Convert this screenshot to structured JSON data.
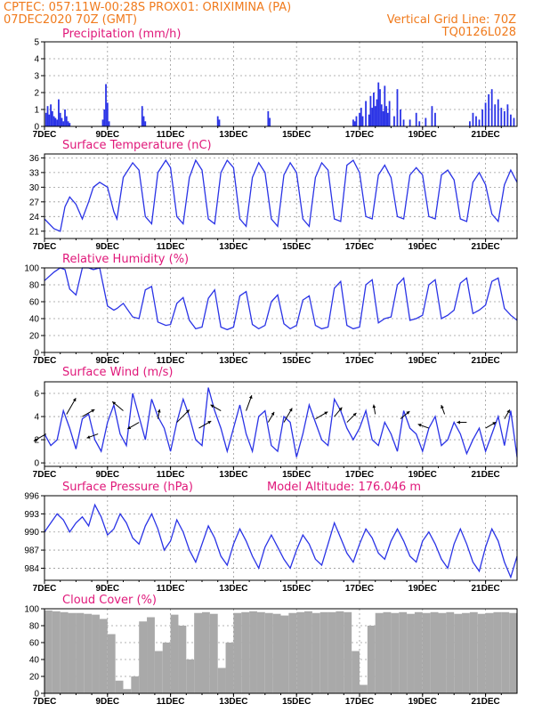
{
  "header": {
    "line1": "CPTEC:   057:11W-00:28S   PROX01: ORIXIMINA (PA)",
    "line2": "07DEC2020 70Z (GMT)",
    "grid_note": "Vertical Grid Line: 70Z",
    "code": "TQ0126L028"
  },
  "colors": {
    "series": "#2a33e6",
    "header": "#f07a1c",
    "title": "#e0187a",
    "cloud": "#a9a9a9",
    "arrow": "#000000"
  },
  "chart_data": [
    {
      "id": "precip",
      "type": "bar",
      "title": "Precipitation (mm/h)",
      "xlim": [
        7,
        22
      ],
      "ylim": [
        0,
        5
      ],
      "yticks": [
        "0",
        "1",
        "2",
        "3",
        "4",
        "5"
      ],
      "ytick_values": [
        0,
        1,
        2,
        3,
        4,
        5
      ],
      "x_tick_labels": [
        "7DEC",
        "9DEC",
        "11DEC",
        "13DEC",
        "15DEC",
        "17DEC",
        "19DEC",
        "21DEC"
      ],
      "x_tick_values": [
        7,
        9,
        11,
        13,
        15,
        17,
        19,
        21
      ],
      "x": [
        7.05,
        7.1,
        7.15,
        7.2,
        7.25,
        7.3,
        7.35,
        7.4,
        7.45,
        7.5,
        7.55,
        7.6,
        7.65,
        7.7,
        7.75,
        7.8,
        8.85,
        8.9,
        8.95,
        9.0,
        9.05,
        10.1,
        10.15,
        10.2,
        12.5,
        12.55,
        14.1,
        14.15,
        16.8,
        16.85,
        16.9,
        17.0,
        17.05,
        17.1,
        17.2,
        17.3,
        17.35,
        17.4,
        17.45,
        17.5,
        17.55,
        17.6,
        17.65,
        17.7,
        17.75,
        17.8,
        17.85,
        17.9,
        17.95,
        18.1,
        18.2,
        18.3,
        18.4,
        18.6,
        18.8,
        18.9,
        19.1,
        19.3,
        19.4,
        20.5,
        20.6,
        20.7,
        20.8,
        20.9,
        21.0,
        21.1,
        21.2,
        21.3,
        21.4,
        21.5,
        21.6,
        21.7,
        21.8,
        21.9
      ],
      "values": [
        0.8,
        1.2,
        0.7,
        1.3,
        0.9,
        0.6,
        0.5,
        0.4,
        1.6,
        0.8,
        0.5,
        0.3,
        1.0,
        0.6,
        0.3,
        0.2,
        0.4,
        1.0,
        2.5,
        1.4,
        0.3,
        1.2,
        0.6,
        0.3,
        0.6,
        0.4,
        0.9,
        0.5,
        0.4,
        0.3,
        0.6,
        0.8,
        1.1,
        0.6,
        1.5,
        0.7,
        1.8,
        1.1,
        2.0,
        1.2,
        1.6,
        2.6,
        2.2,
        1.3,
        0.9,
        2.4,
        1.2,
        0.8,
        1.5,
        0.6,
        2.2,
        1.0,
        0.4,
        0.4,
        0.8,
        0.3,
        0.5,
        1.2,
        0.8,
        0.3,
        0.8,
        0.6,
        0.4,
        1.0,
        1.4,
        1.9,
        2.2,
        1.3,
        1.6,
        1.1,
        0.9,
        1.3,
        0.7,
        0.5
      ]
    },
    {
      "id": "temp",
      "type": "line",
      "title": "Surface Temperature (nC)",
      "xlim": [
        7,
        22
      ],
      "ylim": [
        19.5,
        36.8
      ],
      "yticks": [
        "21",
        "24",
        "27",
        "30",
        "33",
        "36"
      ],
      "ytick_values": [
        21,
        24,
        27,
        30,
        33,
        36
      ],
      "x_tick_labels": [
        "7DEC",
        "9DEC",
        "11DEC",
        "13DEC",
        "15DEC",
        "17DEC",
        "19DEC",
        "21DEC"
      ],
      "x_tick_values": [
        7,
        9,
        11,
        13,
        15,
        17,
        19,
        21
      ],
      "x": [
        7.0,
        7.3,
        7.5,
        7.65,
        7.8,
        8.0,
        8.2,
        8.4,
        8.55,
        8.75,
        9.0,
        9.2,
        9.3,
        9.5,
        9.8,
        10.0,
        10.2,
        10.4,
        10.6,
        10.85,
        11.0,
        11.2,
        11.4,
        11.6,
        11.8,
        12.0,
        12.2,
        12.4,
        12.6,
        12.8,
        13.0,
        13.2,
        13.4,
        13.6,
        13.8,
        14.0,
        14.2,
        14.4,
        14.6,
        14.8,
        15.0,
        15.2,
        15.4,
        15.6,
        15.8,
        16.0,
        16.2,
        16.4,
        16.6,
        16.8,
        17.0,
        17.2,
        17.4,
        17.6,
        17.8,
        18.0,
        18.2,
        18.4,
        18.6,
        18.8,
        19.0,
        19.2,
        19.4,
        19.6,
        19.8,
        20.0,
        20.2,
        20.4,
        20.6,
        20.8,
        21.0,
        21.2,
        21.4,
        21.6,
        21.8,
        22.0
      ],
      "values": [
        23.5,
        21.5,
        21.0,
        26.0,
        28.0,
        26.5,
        23.5,
        27.0,
        30.0,
        31.0,
        30.0,
        25.0,
        23.5,
        32.0,
        35.0,
        33.5,
        24.0,
        22.5,
        33.0,
        35.5,
        34.0,
        24.0,
        22.5,
        32.0,
        35.5,
        33.5,
        23.5,
        22.5,
        33.0,
        35.5,
        34.0,
        23.5,
        22.0,
        32.0,
        35.0,
        33.0,
        23.5,
        22.0,
        32.5,
        35.0,
        33.0,
        23.5,
        22.0,
        32.0,
        35.0,
        33.5,
        23.5,
        23.0,
        34.5,
        35.5,
        33.0,
        24.0,
        23.5,
        32.5,
        34.5,
        32.0,
        24.0,
        23.5,
        32.5,
        34.0,
        32.5,
        24.0,
        23.5,
        32.5,
        33.5,
        31.5,
        23.5,
        23.0,
        31.0,
        33.0,
        30.5,
        24.5,
        23.0,
        30.5,
        33.5,
        31.0
      ]
    },
    {
      "id": "rh",
      "type": "line",
      "title": "Relative Humidity (%)",
      "xlim": [
        7,
        22
      ],
      "ylim": [
        0,
        100
      ],
      "yticks": [
        "0",
        "20",
        "40",
        "60",
        "80",
        "100"
      ],
      "ytick_values": [
        0,
        20,
        40,
        60,
        80,
        100
      ],
      "x_tick_labels": [
        "7DEC",
        "9DEC",
        "11DEC",
        "13DEC",
        "15DEC",
        "17DEC",
        "19DEC",
        "21DEC"
      ],
      "x_tick_values": [
        7,
        9,
        11,
        13,
        15,
        17,
        19,
        21
      ],
      "x": [
        7.0,
        7.3,
        7.5,
        7.65,
        7.8,
        8.0,
        8.2,
        8.4,
        8.55,
        8.75,
        9.0,
        9.2,
        9.3,
        9.5,
        9.8,
        10.0,
        10.2,
        10.4,
        10.6,
        10.85,
        11.0,
        11.2,
        11.4,
        11.6,
        11.8,
        12.0,
        12.2,
        12.4,
        12.6,
        12.8,
        13.0,
        13.2,
        13.4,
        13.6,
        13.8,
        14.0,
        14.2,
        14.4,
        14.6,
        14.8,
        15.0,
        15.2,
        15.4,
        15.6,
        15.8,
        16.0,
        16.2,
        16.4,
        16.6,
        16.8,
        17.0,
        17.2,
        17.4,
        17.6,
        17.8,
        18.0,
        18.2,
        18.4,
        18.6,
        18.8,
        19.0,
        19.2,
        19.4,
        19.6,
        19.8,
        20.0,
        20.2,
        20.4,
        20.6,
        20.8,
        21.0,
        21.2,
        21.4,
        21.6,
        21.8,
        22.0
      ],
      "values": [
        85,
        95,
        100,
        98,
        75,
        68,
        100,
        100,
        98,
        100,
        55,
        50,
        52,
        58,
        42,
        40,
        74,
        78,
        36,
        32,
        33,
        58,
        65,
        38,
        28,
        30,
        64,
        74,
        30,
        27,
        30,
        67,
        72,
        33,
        28,
        32,
        60,
        68,
        34,
        28,
        32,
        62,
        67,
        32,
        28,
        30,
        76,
        84,
        32,
        28,
        30,
        80,
        86,
        35,
        40,
        42,
        80,
        88,
        38,
        40,
        44,
        80,
        86,
        40,
        44,
        50,
        82,
        88,
        46,
        50,
        56,
        84,
        88,
        52,
        44,
        38
      ]
    },
    {
      "id": "wind",
      "type": "line",
      "title": "Surface Wind (m/s)",
      "xlim": [
        7,
        22
      ],
      "ylim": [
        -0.3,
        7
      ],
      "yticks": [
        "0",
        "2",
        "4",
        "6"
      ],
      "ytick_values": [
        0,
        2,
        4,
        6
      ],
      "x_tick_labels": [
        "7DEC",
        "9DEC",
        "11DEC",
        "13DEC",
        "15DEC",
        "17DEC",
        "19DEC",
        "21DEC"
      ],
      "x_tick_values": [
        7,
        9,
        11,
        13,
        15,
        17,
        19,
        21
      ],
      "x": [
        7.0,
        7.2,
        7.4,
        7.6,
        7.8,
        8.0,
        8.2,
        8.4,
        8.6,
        8.8,
        9.0,
        9.2,
        9.4,
        9.6,
        9.8,
        10.0,
        10.2,
        10.4,
        10.6,
        10.8,
        11.0,
        11.2,
        11.4,
        11.6,
        11.8,
        12.0,
        12.2,
        12.4,
        12.6,
        12.8,
        13.0,
        13.2,
        13.4,
        13.6,
        13.8,
        14.0,
        14.2,
        14.4,
        14.6,
        14.8,
        15.0,
        15.2,
        15.4,
        15.6,
        15.8,
        16.0,
        16.2,
        16.4,
        16.6,
        16.8,
        17.0,
        17.2,
        17.4,
        17.6,
        17.8,
        18.0,
        18.2,
        18.4,
        18.6,
        18.8,
        19.0,
        19.2,
        19.4,
        19.6,
        19.8,
        20.0,
        20.2,
        20.4,
        20.6,
        20.8,
        21.0,
        21.2,
        21.4,
        21.6,
        21.8,
        22.0
      ],
      "values": [
        2.5,
        1.5,
        2.0,
        4.5,
        3.0,
        1.2,
        3.8,
        4.2,
        2.0,
        1.0,
        3.5,
        5.0,
        2.5,
        1.5,
        6.0,
        4.0,
        2.0,
        5.5,
        4.0,
        3.0,
        1.0,
        3.5,
        5.5,
        4.0,
        2.0,
        1.5,
        6.5,
        4.5,
        3.0,
        1.0,
        3.0,
        5.0,
        2.5,
        1.0,
        4.0,
        4.5,
        1.5,
        1.0,
        4.0,
        3.5,
        0.5,
        2.5,
        5.0,
        3.5,
        2.0,
        1.5,
        5.5,
        4.5,
        3.0,
        2.0,
        3.0,
        4.5,
        2.0,
        1.5,
        3.5,
        2.5,
        1.0,
        4.5,
        3.0,
        2.5,
        1.0,
        3.0,
        4.0,
        1.5,
        2.0,
        3.5,
        2.5,
        0.8,
        2.0,
        3.0,
        1.0,
        2.5,
        4.0,
        1.5,
        4.5,
        0.5
      ],
      "vectors": [
        {
          "x": 7.05,
          "y": 2.5,
          "angle": 210,
          "speed": 2.0
        },
        {
          "x": 7.7,
          "y": 4.2,
          "angle": 60,
          "speed": 3.0
        },
        {
          "x": 8.2,
          "y": 4.0,
          "angle": 30,
          "speed": 2.0
        },
        {
          "x": 8.7,
          "y": 2.5,
          "angle": 200,
          "speed": 1.5
        },
        {
          "x": 9.5,
          "y": 4.5,
          "angle": 140,
          "speed": 2.0
        },
        {
          "x": 10.0,
          "y": 3.5,
          "angle": 210,
          "speed": 1.8
        },
        {
          "x": 10.6,
          "y": 3.8,
          "angle": 80,
          "speed": 1.0
        },
        {
          "x": 11.2,
          "y": 3.5,
          "angle": 45,
          "speed": 2.8
        },
        {
          "x": 11.9,
          "y": 3.0,
          "angle": 30,
          "speed": 2.0
        },
        {
          "x": 12.6,
          "y": 4.5,
          "angle": 150,
          "speed": 1.5
        },
        {
          "x": 13.4,
          "y": 4.5,
          "angle": 70,
          "speed": 2.5
        },
        {
          "x": 14.1,
          "y": 3.5,
          "angle": 60,
          "speed": 1.5
        },
        {
          "x": 14.6,
          "y": 3.5,
          "angle": 60,
          "speed": 2.5
        },
        {
          "x": 15.6,
          "y": 3.8,
          "angle": 30,
          "speed": 2.0
        },
        {
          "x": 16.2,
          "y": 4.0,
          "angle": 50,
          "speed": 1.5
        },
        {
          "x": 16.6,
          "y": 3.5,
          "angle": 45,
          "speed": 1.8
        },
        {
          "x": 17.5,
          "y": 4.2,
          "angle": 100,
          "speed": 1.0
        },
        {
          "x": 18.3,
          "y": 3.8,
          "angle": 40,
          "speed": 1.5
        },
        {
          "x": 19.2,
          "y": 3.0,
          "angle": 160,
          "speed": 1.4
        },
        {
          "x": 19.7,
          "y": 4.2,
          "angle": 110,
          "speed": 1.0
        },
        {
          "x": 20.4,
          "y": 3.5,
          "angle": 180,
          "speed": 1.0
        },
        {
          "x": 21.0,
          "y": 3.0,
          "angle": 30,
          "speed": 1.5
        },
        {
          "x": 21.6,
          "y": 3.8,
          "angle": 60,
          "speed": 1.2
        }
      ]
    },
    {
      "id": "press",
      "type": "line",
      "title": "Surface Pressure (hPa)",
      "annotation": "Model Altitude: 176.046 m",
      "xlim": [
        7,
        22
      ],
      "ylim": [
        982,
        996
      ],
      "yticks": [
        "984",
        "987",
        "990",
        "993",
        "996"
      ],
      "ytick_values": [
        984,
        987,
        990,
        993,
        996
      ],
      "x_tick_labels": [
        "7DEC",
        "9DEC",
        "11DEC",
        "13DEC",
        "15DEC",
        "17DEC",
        "19DEC",
        "21DEC"
      ],
      "x_tick_values": [
        7,
        9,
        11,
        13,
        15,
        17,
        19,
        21
      ],
      "x": [
        7.0,
        7.2,
        7.4,
        7.6,
        7.8,
        8.0,
        8.2,
        8.4,
        8.6,
        8.8,
        9.0,
        9.2,
        9.4,
        9.6,
        9.8,
        10.0,
        10.2,
        10.4,
        10.6,
        10.8,
        11.0,
        11.2,
        11.4,
        11.6,
        11.8,
        12.0,
        12.2,
        12.4,
        12.6,
        12.8,
        13.0,
        13.2,
        13.4,
        13.6,
        13.8,
        14.0,
        14.2,
        14.4,
        14.6,
        14.8,
        15.0,
        15.2,
        15.4,
        15.6,
        15.8,
        16.0,
        16.2,
        16.4,
        16.6,
        16.8,
        17.0,
        17.2,
        17.4,
        17.6,
        17.8,
        18.0,
        18.2,
        18.4,
        18.6,
        18.8,
        19.0,
        19.2,
        19.4,
        19.6,
        19.8,
        20.0,
        20.2,
        20.4,
        20.6,
        20.8,
        21.0,
        21.2,
        21.4,
        21.6,
        21.8,
        22.0
      ],
      "values": [
        990.0,
        991.5,
        993.0,
        992.0,
        990.0,
        991.5,
        992.5,
        991.0,
        994.5,
        992.5,
        989.5,
        990.5,
        993.0,
        991.5,
        989.0,
        988.0,
        991.0,
        993.0,
        990.5,
        987.0,
        988.5,
        992.0,
        990.0,
        987.0,
        985.0,
        988.0,
        991.0,
        989.0,
        986.0,
        984.5,
        988.0,
        990.5,
        988.5,
        986.0,
        984.0,
        987.5,
        989.5,
        987.5,
        985.5,
        984.0,
        987.0,
        989.5,
        988.0,
        985.5,
        984.5,
        988.0,
        991.5,
        989.0,
        986.5,
        985.0,
        988.0,
        990.5,
        989.0,
        986.5,
        985.5,
        988.5,
        990.5,
        988.5,
        986.0,
        985.0,
        988.5,
        990.0,
        988.0,
        985.5,
        984.0,
        988.0,
        990.5,
        988.0,
        985.0,
        983.5,
        987.5,
        990.5,
        988.5,
        985.0,
        982.5,
        986.0
      ]
    },
    {
      "id": "cloud",
      "type": "bar",
      "title": "Cloud Cover (%)",
      "xlim": [
        7,
        22
      ],
      "ylim": [
        0,
        100
      ],
      "yticks": [
        "0",
        "20",
        "40",
        "60",
        "80",
        "100"
      ],
      "ytick_values": [
        0,
        20,
        40,
        60,
        80,
        100
      ],
      "x_tick_labels": [
        "7DEC",
        "9DEC",
        "11DEC",
        "13DEC",
        "15DEC",
        "17DEC",
        "19DEC",
        "21DEC"
      ],
      "x_tick_values": [
        7,
        9,
        11,
        13,
        15,
        17,
        19,
        21
      ],
      "x": [
        7.0,
        7.25,
        7.5,
        7.75,
        8.0,
        8.25,
        8.5,
        8.75,
        9.0,
        9.25,
        9.5,
        9.75,
        10.0,
        10.25,
        10.5,
        10.75,
        11.0,
        11.25,
        11.5,
        11.75,
        12.0,
        12.25,
        12.5,
        12.75,
        13.0,
        13.25,
        13.5,
        13.75,
        14.0,
        14.25,
        14.5,
        14.75,
        15.0,
        15.25,
        15.5,
        15.75,
        16.0,
        16.25,
        16.5,
        16.75,
        17.0,
        17.25,
        17.5,
        17.75,
        18.0,
        18.25,
        18.5,
        18.75,
        19.0,
        19.25,
        19.5,
        19.75,
        20.0,
        20.25,
        20.5,
        20.75,
        21.0,
        21.25,
        21.5,
        21.75
      ],
      "values": [
        98,
        97,
        96,
        95,
        95,
        94,
        93,
        88,
        70,
        15,
        5,
        20,
        85,
        90,
        50,
        60,
        93,
        80,
        40,
        95,
        96,
        94,
        30,
        60,
        95,
        96,
        97,
        96,
        95,
        94,
        92,
        95,
        96,
        97,
        95,
        96,
        96,
        97,
        96,
        50,
        10,
        80,
        95,
        96,
        95,
        96,
        94,
        96,
        95,
        96,
        95,
        96,
        94,
        95,
        96,
        94,
        95,
        96,
        96,
        95
      ]
    }
  ]
}
